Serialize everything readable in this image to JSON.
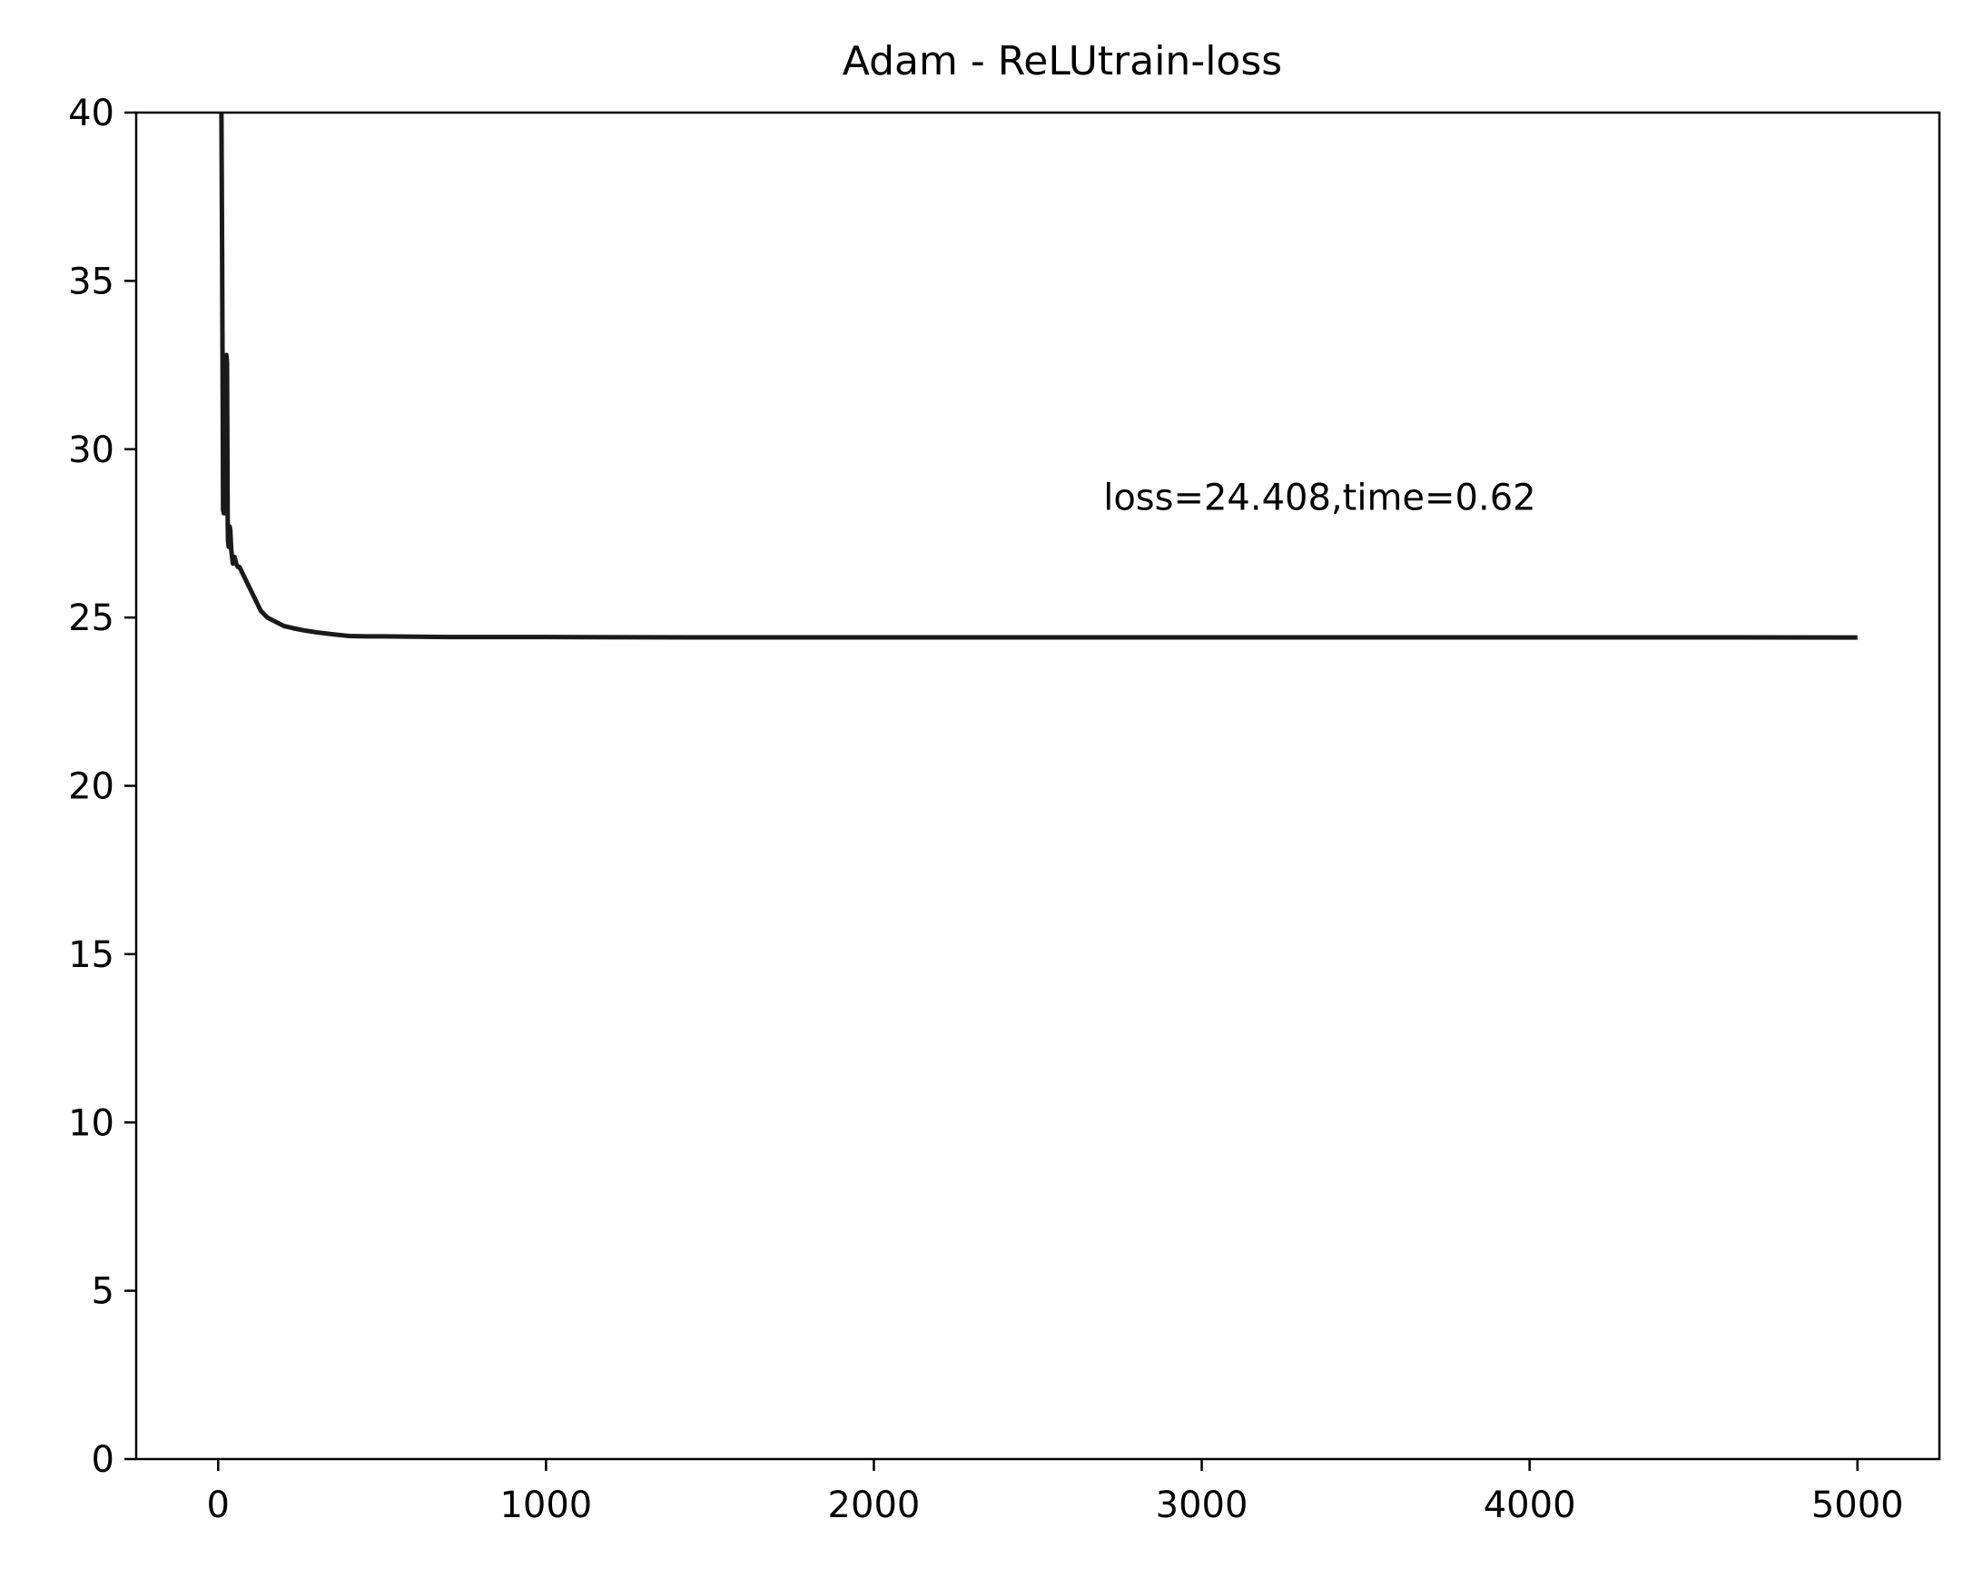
{
  "chart_data": {
    "type": "line",
    "title": "Adam - ReLUtrain-loss",
    "xlabel": "",
    "ylabel": "",
    "xlim": [
      -250,
      5250
    ],
    "ylim": [
      0,
      40
    ],
    "xticks": [
      0,
      1000,
      2000,
      3000,
      4000,
      5000
    ],
    "yticks": [
      0,
      5,
      10,
      15,
      20,
      25,
      30,
      35,
      40
    ],
    "grid": false,
    "legend": "none",
    "annotation": {
      "text": "loss=24.408,time=0.62",
      "x": 2700,
      "y": 28.2
    },
    "series": [
      {
        "color": "#1a1a1a",
        "x": [
          10,
          12,
          14,
          15,
          17,
          18,
          20,
          22,
          25,
          27,
          29,
          30,
          32,
          35,
          37,
          40,
          45,
          50,
          55,
          60,
          65,
          70,
          80,
          90,
          100,
          110,
          120,
          130,
          140,
          150,
          160,
          180,
          200,
          230,
          260,
          300,
          350,
          400,
          450,
          500,
          600,
          700,
          800,
          1000,
          1500,
          2000,
          2500,
          3000,
          3500,
          4000,
          4500,
          5000
        ],
        "y": [
          40,
          36,
          31,
          28.2,
          28.1,
          28.1,
          28.1,
          28.2,
          32.8,
          32.6,
          28.0,
          27.3,
          27.1,
          27.7,
          27.6,
          27.0,
          26.6,
          26.8,
          26.6,
          26.5,
          26.5,
          26.4,
          26.2,
          26.0,
          25.8,
          25.6,
          25.4,
          25.2,
          25.1,
          25.0,
          24.95,
          24.85,
          24.75,
          24.68,
          24.62,
          24.56,
          24.5,
          24.45,
          24.44,
          24.44,
          24.43,
          24.42,
          24.42,
          24.42,
          24.41,
          24.41,
          24.41,
          24.41,
          24.41,
          24.41,
          24.41,
          24.408
        ]
      }
    ]
  }
}
